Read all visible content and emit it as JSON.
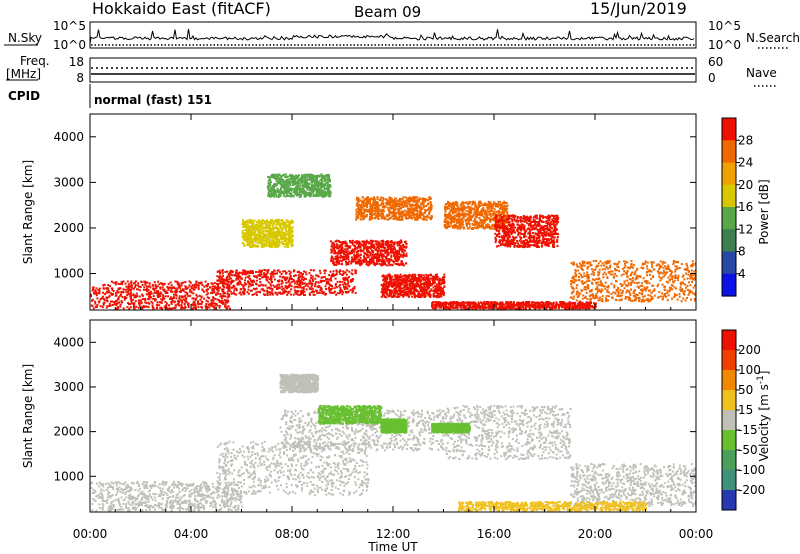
{
  "header": {
    "station": "Hokkaido East (fitACF)",
    "beam": "Beam 09",
    "date": "15/Jun/2019"
  },
  "noise_panel": {
    "left_label": "N.Sky",
    "left_top": "10^5",
    "left_bottom": "10^0",
    "right_top": "10^5",
    "right_bottom": "10^0",
    "right_label": "N.Search"
  },
  "freq_panel": {
    "label_line1": "Freq.",
    "label_line2": "[MHz]",
    "left_top": "18",
    "left_bottom": "8",
    "right_top": "60",
    "right_bottom": "0",
    "right_label": "Nave"
  },
  "cpid": {
    "label": "CPID",
    "value": "normal (fast) 151"
  },
  "colors": {
    "grey_scatter": "#c0c0b8",
    "frame": "#000000"
  },
  "chart_data": [
    {
      "type": "heatmap",
      "panel": "power",
      "ylabel": "Slant Range [km]",
      "yticks": [
        "1000",
        "2000",
        "3000",
        "4000"
      ],
      "ylim": [
        200,
        4500
      ],
      "xlim": [
        0,
        24
      ],
      "colorbar_label": "Power [dB]",
      "colorbar_ticks": [
        "4",
        "8",
        "12",
        "16",
        "20",
        "24",
        "28"
      ],
      "colorbar_colors": [
        "#0a12e6",
        "#2848a8",
        "#3c8050",
        "#58a848",
        "#d8c800",
        "#f0a000",
        "#f06800",
        "#ee1000"
      ],
      "regions": [
        {
          "t0": 0.0,
          "t1": 5.5,
          "r0": 250,
          "r1": 850,
          "color": "#ee1000"
        },
        {
          "t0": 5.0,
          "t1": 10.5,
          "r0": 550,
          "r1": 1100,
          "color": "#ee1000"
        },
        {
          "t0": 9.5,
          "t1": 12.5,
          "r0": 1200,
          "r1": 1750,
          "color": "#ee1000"
        },
        {
          "t0": 11.5,
          "t1": 14.0,
          "r0": 500,
          "r1": 1000,
          "color": "#ee1000"
        },
        {
          "t0": 14.0,
          "t1": 16.5,
          "r0": 2000,
          "r1": 2600,
          "color": "#f06800"
        },
        {
          "t0": 16.0,
          "t1": 18.5,
          "r0": 1600,
          "r1": 2300,
          "color": "#ee1000"
        },
        {
          "t0": 10.5,
          "t1": 13.5,
          "r0": 2200,
          "r1": 2700,
          "color": "#f06800"
        },
        {
          "t0": 7.0,
          "t1": 9.5,
          "r0": 2700,
          "r1": 3200,
          "color": "#58a848"
        },
        {
          "t0": 19.0,
          "t1": 24.0,
          "r0": 400,
          "r1": 1300,
          "color": "#f06800"
        },
        {
          "t0": 13.5,
          "t1": 20.0,
          "r0": 250,
          "r1": 400,
          "color": "#ee1000"
        },
        {
          "t0": 6.0,
          "t1": 8.0,
          "r0": 1600,
          "r1": 2200,
          "color": "#d8c800"
        }
      ]
    },
    {
      "type": "heatmap",
      "panel": "velocity",
      "ylabel": "Slant Range [km]",
      "yticks": [
        "1000",
        "2000",
        "3000",
        "4000"
      ],
      "ylim": [
        200,
        4500
      ],
      "xlim": [
        0,
        24
      ],
      "xticks": [
        "00:00",
        "04:00",
        "08:00",
        "12:00",
        "16:00",
        "20:00",
        "00:00"
      ],
      "xlabel": "Time UT",
      "colorbar_label": "Velocity [m s^-1]",
      "colorbar_ticks": [
        "200",
        "100",
        "50",
        "15",
        "-15",
        "-50",
        "-100",
        "-200"
      ],
      "colorbar_colors": [
        "#2838b0",
        "#40907c",
        "#4aa05a",
        "#68c030",
        "#c0c0b8",
        "#f0c020",
        "#f08800",
        "#f04000",
        "#ee1000"
      ],
      "regions": [
        {
          "t0": 0.0,
          "t1": 6.0,
          "r0": 250,
          "r1": 900,
          "color": "#c0c0b8"
        },
        {
          "t0": 5.0,
          "t1": 11.0,
          "r0": 600,
          "r1": 1800,
          "color": "#c0c0b8"
        },
        {
          "t0": 7.5,
          "t1": 14.0,
          "r0": 1600,
          "r1": 2500,
          "color": "#c0c0b8"
        },
        {
          "t0": 14.0,
          "t1": 19.0,
          "r0": 1400,
          "r1": 2600,
          "color": "#c0c0b8"
        },
        {
          "t0": 19.0,
          "t1": 24.0,
          "r0": 350,
          "r1": 1300,
          "color": "#c0c0b8"
        },
        {
          "t0": 9.0,
          "t1": 11.5,
          "r0": 2200,
          "r1": 2600,
          "color": "#68c030"
        },
        {
          "t0": 11.5,
          "t1": 12.5,
          "r0": 2000,
          "r1": 2300,
          "color": "#68c030"
        },
        {
          "t0": 13.5,
          "t1": 15.0,
          "r0": 2000,
          "r1": 2200,
          "color": "#68c030"
        },
        {
          "t0": 14.5,
          "t1": 22.0,
          "r0": 250,
          "r1": 450,
          "color": "#f0c020"
        },
        {
          "t0": 7.5,
          "t1": 9.0,
          "r0": 2900,
          "r1": 3300,
          "color": "#c0c0b8"
        }
      ]
    }
  ]
}
